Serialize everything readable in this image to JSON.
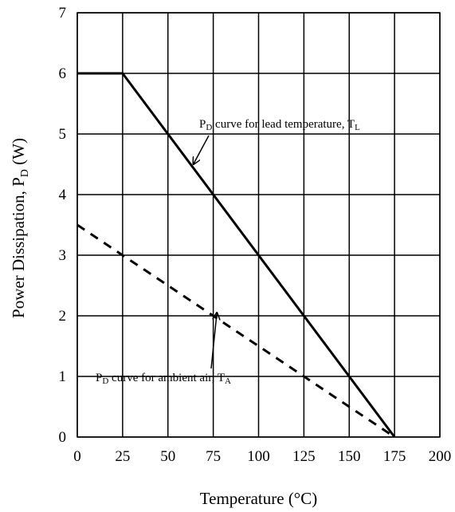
{
  "chart_data": {
    "type": "line",
    "title": "",
    "xlabel": "Temperature (°C)",
    "ylabel_main": "Power Dissipation, P",
    "ylabel_sub": "D",
    "ylabel_unit": " (W)",
    "xlim": [
      0,
      200
    ],
    "ylim": [
      0,
      7
    ],
    "x_ticks": [
      "0",
      "25",
      "50",
      "75",
      "100",
      "125",
      "150",
      "175",
      "200"
    ],
    "y_ticks": [
      "0",
      "1",
      "2",
      "3",
      "4",
      "5",
      "6",
      "7"
    ],
    "grid": true,
    "series": [
      {
        "x": [
          0,
          25,
          175
        ],
        "y": [
          6,
          6,
          0
        ],
        "style": "solid",
        "color": "#000000"
      },
      {
        "x": [
          0,
          175
        ],
        "y": [
          3.5,
          0
        ],
        "style": "dashed",
        "color": "#000000"
      }
    ],
    "annotations": [
      {
        "text_main": "P",
        "text_sub1": "D",
        "text_mid": " curve for lead temperature, T",
        "text_sub2": "L",
        "arrow_to": [
          64,
          4.5
        ]
      },
      {
        "text_main": "P",
        "text_sub1": "D",
        "text_mid": " curve for ambient air, T",
        "text_sub2": "A",
        "arrow_to": [
          77,
          2.05
        ]
      }
    ]
  }
}
